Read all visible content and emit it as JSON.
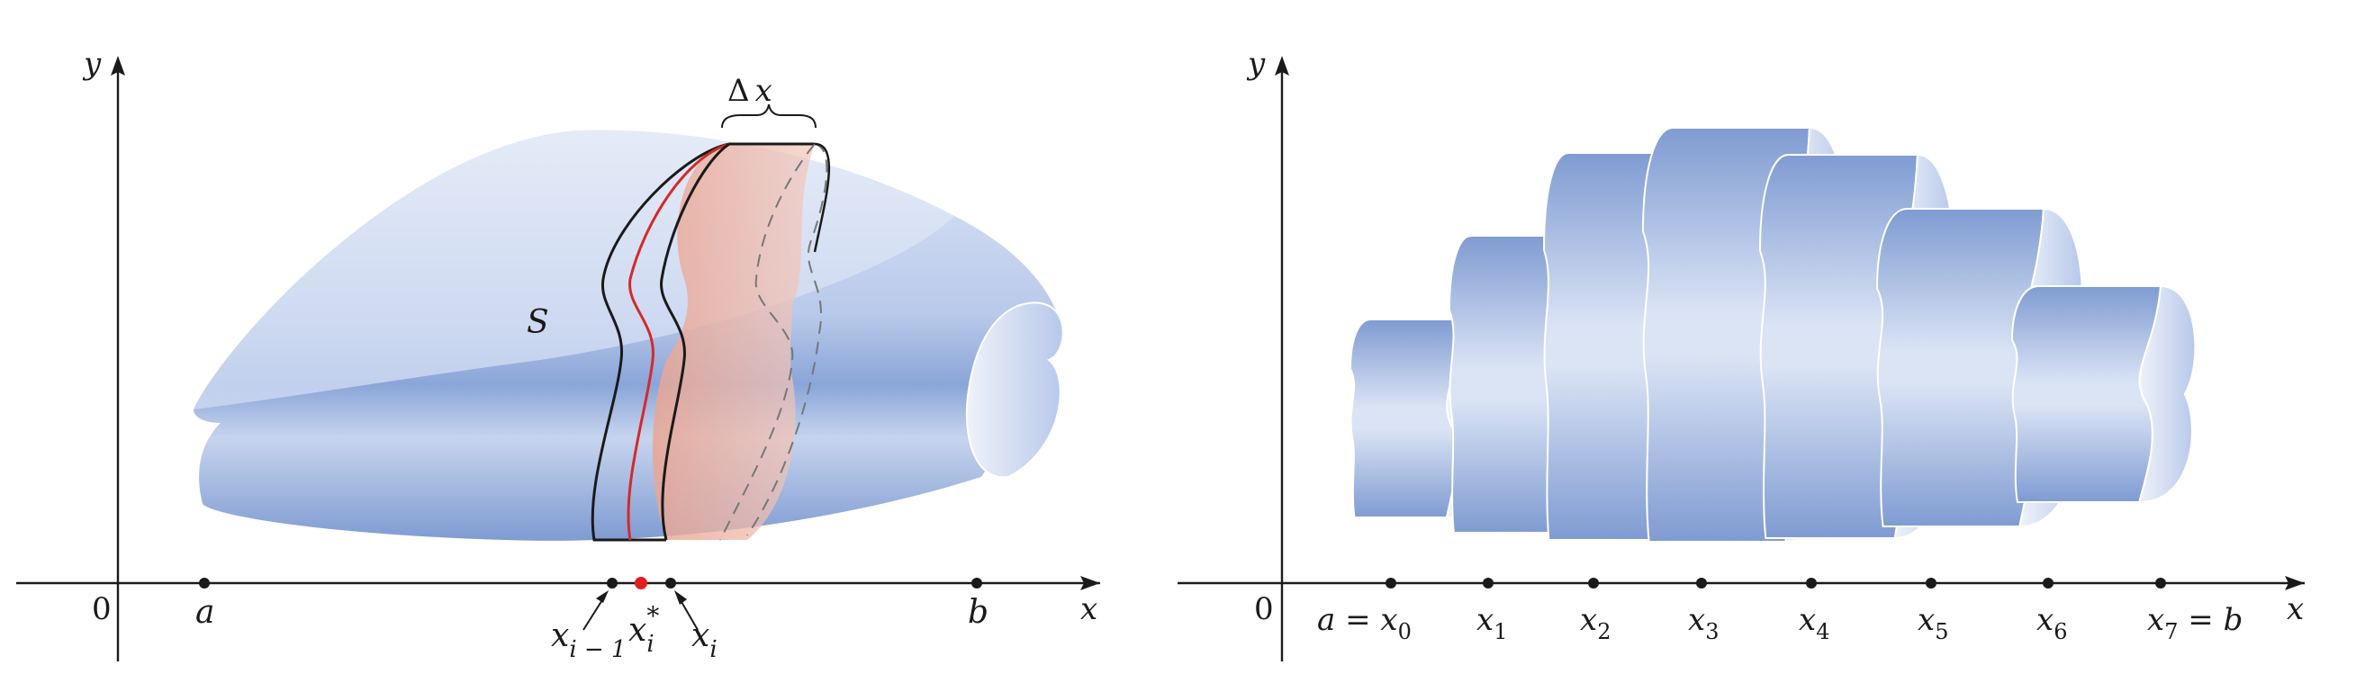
{
  "left": {
    "y_axis_label": "y",
    "x_axis_label": "x",
    "origin_label": "0",
    "a_label": "a",
    "b_label": "b",
    "solid_label": "S",
    "delta_label": "Δ",
    "delta_var": "x",
    "xi_minus_1": {
      "base": "x",
      "sub": "i − 1"
    },
    "xi_star": {
      "base": "x",
      "sub": "i",
      "sup": "*"
    },
    "xi": {
      "base": "x",
      "sub": "i"
    }
  },
  "right": {
    "y_axis_label": "y",
    "x_axis_label": "x",
    "origin_label": "0",
    "ticks": [
      {
        "pre": "a = ",
        "base": "x",
        "sub": "0",
        "post": ""
      },
      {
        "pre": "",
        "base": "x",
        "sub": "1",
        "post": ""
      },
      {
        "pre": "",
        "base": "x",
        "sub": "2",
        "post": ""
      },
      {
        "pre": "",
        "base": "x",
        "sub": "3",
        "post": ""
      },
      {
        "pre": "",
        "base": "x",
        "sub": "4",
        "post": ""
      },
      {
        "pre": "",
        "base": "x",
        "sub": "5",
        "post": ""
      },
      {
        "pre": "",
        "base": "x",
        "sub": "6",
        "post": ""
      },
      {
        "pre": "",
        "base": "x",
        "sub": "7",
        "post": " = b"
      }
    ]
  },
  "colors": {
    "solid_light": "#dbe4f4",
    "solid_mid": "#a9bde4",
    "solid_dark": "#7f9bd2",
    "slice_fill": "#e8a89a",
    "sample_line": "#d42a2a",
    "sample_dot": "#e02020"
  }
}
